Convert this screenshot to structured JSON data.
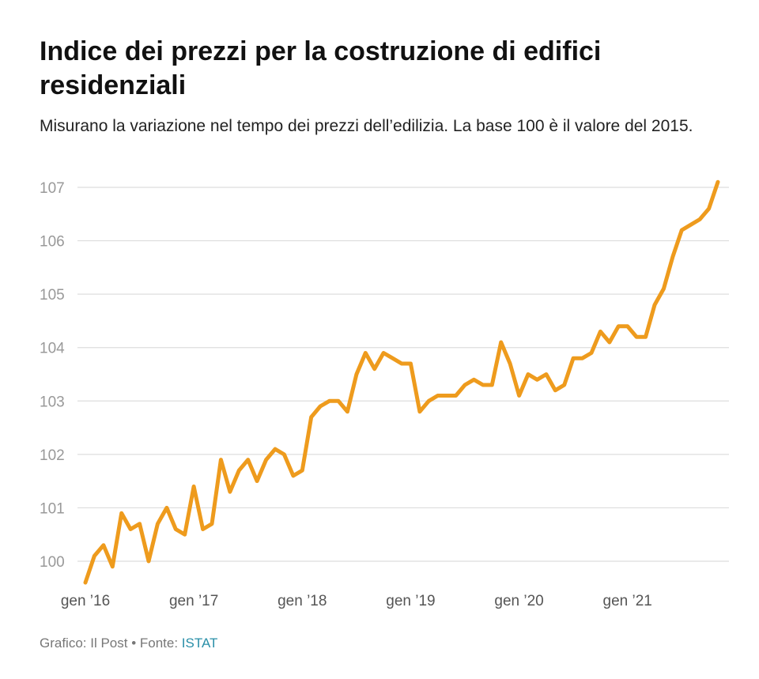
{
  "title": "Indice dei prezzi per la costruzione di edifici residenziali",
  "subtitle": "Misurano la variazione nel tempo dei prezzi dell’edilizia. La base 100 è il valore del 2015.",
  "footer": {
    "prefix": "Grafico: Il Post • Fonte: ",
    "source": "ISTAT"
  },
  "colors": {
    "line": "#ee9b1d",
    "grid": "#dddddd",
    "tick_text": "#999999",
    "axis_text": "#555555"
  },
  "chart_data": {
    "type": "line",
    "title": "Indice dei prezzi per la costruzione di edifici residenziali",
    "xlabel": "",
    "ylabel": "",
    "ylim": [
      100,
      107
    ],
    "yticks": [
      100,
      101,
      102,
      103,
      104,
      105,
      106,
      107
    ],
    "xticks": [
      {
        "label": "gen ’16",
        "index": 0
      },
      {
        "label": "gen ’17",
        "index": 12
      },
      {
        "label": "gen ’18",
        "index": 24
      },
      {
        "label": "gen ’19",
        "index": 36
      },
      {
        "label": "gen ’20",
        "index": 48
      },
      {
        "label": "gen ’21",
        "index": 60
      }
    ],
    "grid": true,
    "series": [
      {
        "name": "Indice dei prezzi",
        "start": "gen 2016",
        "frequency": "monthly",
        "values": [
          99.6,
          100.1,
          100.3,
          99.9,
          100.9,
          100.6,
          100.7,
          100.0,
          100.7,
          101.0,
          100.6,
          100.5,
          101.4,
          100.6,
          100.7,
          101.9,
          101.3,
          101.7,
          101.9,
          101.5,
          101.9,
          102.1,
          102.0,
          101.6,
          101.7,
          102.7,
          102.9,
          103.0,
          103.0,
          102.8,
          103.5,
          103.9,
          103.6,
          103.9,
          103.8,
          103.7,
          103.7,
          102.8,
          103.0,
          103.1,
          103.1,
          103.1,
          103.3,
          103.4,
          103.3,
          103.3,
          104.1,
          103.7,
          103.1,
          103.5,
          103.4,
          103.5,
          103.2,
          103.3,
          103.8,
          103.8,
          103.9,
          104.3,
          104.1,
          104.4,
          104.4,
          104.2,
          104.2,
          104.8,
          105.1,
          105.7,
          106.2,
          106.3,
          106.4,
          106.6,
          107.1
        ]
      }
    ]
  }
}
